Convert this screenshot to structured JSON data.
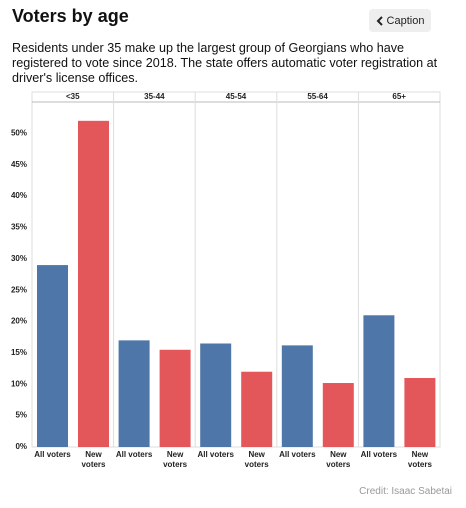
{
  "header": {
    "title": "Voters by age",
    "caption_button": "Caption",
    "subtitle": "Residents under 35 make up the largest group of Georgians who have registered to vote since 2018. The state offers automatic voter registration at driver's license offices.",
    "credit": "Credit: Isaac Sabetai"
  },
  "chart_data": {
    "type": "bar",
    "categories": [
      "<35",
      "35-44",
      "45-54",
      "55-64",
      "65+"
    ],
    "series": [
      {
        "name": "All voters",
        "color": "#4f76a8",
        "values": [
          29,
          17,
          16.5,
          16.2,
          21
        ]
      },
      {
        "name": "New voters",
        "color": "#e3575b",
        "values": [
          52,
          15.5,
          12,
          10.2,
          11
        ]
      }
    ],
    "ylim": [
      0,
      55
    ],
    "yticks": [
      {
        "value": 0,
        "label": "0%"
      },
      {
        "value": 5,
        "label": "5%"
      },
      {
        "value": 10,
        "label": "10%"
      },
      {
        "value": 15,
        "label": "15%"
      },
      {
        "value": 20,
        "label": "20%"
      },
      {
        "value": 25,
        "label": "25%"
      },
      {
        "value": 30,
        "label": "30%"
      },
      {
        "value": 35,
        "label": "35%"
      },
      {
        "value": 40,
        "label": "40%"
      },
      {
        "value": 45,
        "label": "45%"
      },
      {
        "value": 50,
        "label": "50%"
      }
    ],
    "grid": false
  }
}
